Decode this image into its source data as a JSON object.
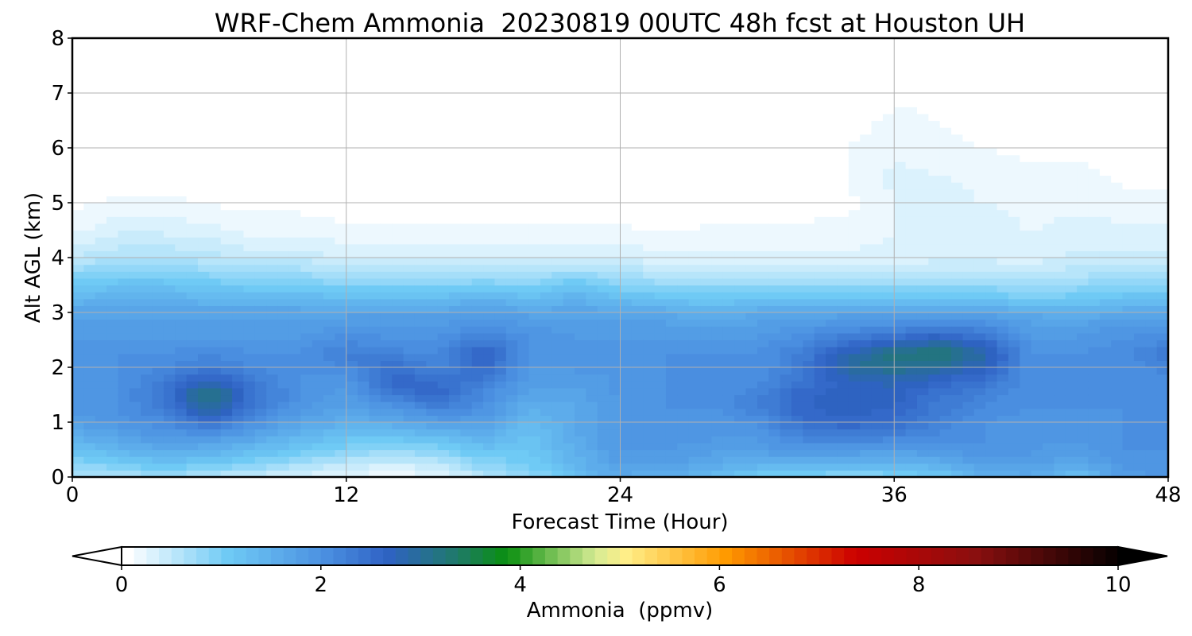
{
  "chart_data": {
    "type": "heatmap",
    "title": "WRF-Chem Ammonia  20230819 00UTC 48h fcst at Houston UH",
    "xlabel": "Forecast Time (Hour)",
    "ylabel": "Alt AGL (km)",
    "xlim": [
      0,
      48
    ],
    "ylim": [
      0,
      8
    ],
    "xticks": [
      0,
      12,
      24,
      36,
      48
    ],
    "yticks": [
      0,
      1,
      2,
      3,
      4,
      5,
      6,
      7,
      8
    ],
    "grid": true,
    "colorbar": {
      "label": "Ammonia  (ppmv)",
      "range": [
        0,
        10
      ],
      "ticks": [
        0,
        2,
        4,
        6,
        8,
        10
      ],
      "extend": "both",
      "stops": [
        {
          "value": 0.0,
          "color": "#ffffff"
        },
        {
          "value": 1.0,
          "color": "#6fcaf5"
        },
        {
          "value": 2.0,
          "color": "#4a8ee0"
        },
        {
          "value": 2.6,
          "color": "#2f62c4"
        },
        {
          "value": 3.3,
          "color": "#1f7a6a"
        },
        {
          "value": 3.8,
          "color": "#0a8f10"
        },
        {
          "value": 4.7,
          "color": "#d6ec94"
        },
        {
          "value": 5.0,
          "color": "#ffee88"
        },
        {
          "value": 6.0,
          "color": "#ff9a00"
        },
        {
          "value": 7.3,
          "color": "#cc0000"
        },
        {
          "value": 8.5,
          "color": "#8a0f0f"
        },
        {
          "value": 10.0,
          "color": "#000000"
        }
      ]
    },
    "times": [
      0,
      2,
      4,
      6,
      8,
      10,
      12,
      14,
      16,
      18,
      20,
      22,
      24,
      26,
      28,
      30,
      32,
      34,
      36,
      38,
      40,
      42,
      44,
      46,
      48
    ],
    "altitudes": [
      0,
      0.25,
      0.5,
      0.75,
      1.0,
      1.25,
      1.5,
      1.75,
      2.0,
      2.25,
      2.5,
      2.75,
      3.0,
      3.25,
      3.5,
      3.75,
      4.0,
      4.5,
      5.0,
      5.5,
      6.0,
      7.0,
      8.0
    ],
    "values": [
      [
        0.6,
        0.9,
        1.2,
        1.5,
        1.8,
        1.9,
        1.9,
        1.9,
        1.9,
        1.9,
        1.9,
        1.8,
        1.7,
        1.4,
        1.1,
        0.8,
        0.5,
        0.2,
        0.1,
        0.05,
        0.05,
        0.05,
        0.05
      ],
      [
        0.6,
        1.0,
        1.4,
        1.7,
        1.9,
        2.0,
        2.0,
        2.0,
        2.0,
        2.0,
        1.9,
        1.8,
        1.7,
        1.5,
        1.2,
        0.9,
        0.6,
        0.35,
        0.15,
        0.05,
        0.05,
        0.05,
        0.05
      ],
      [
        0.7,
        1.2,
        1.6,
        1.9,
        2.1,
        2.3,
        2.4,
        2.3,
        2.1,
        2.0,
        1.9,
        1.8,
        1.7,
        1.5,
        1.2,
        0.9,
        0.6,
        0.35,
        0.15,
        0.05,
        0.05,
        0.05,
        0.05
      ],
      [
        0.5,
        1.1,
        1.5,
        1.9,
        2.5,
        3.0,
        3.3,
        2.8,
        2.3,
        2.1,
        1.9,
        1.8,
        1.7,
        1.4,
        1.1,
        0.8,
        0.55,
        0.3,
        0.12,
        0.05,
        0.05,
        0.05,
        0.05
      ],
      [
        0.4,
        0.9,
        1.3,
        1.7,
        2.0,
        2.3,
        2.4,
        2.3,
        2.1,
        2.0,
        1.9,
        1.8,
        1.7,
        1.4,
        1.0,
        0.7,
        0.45,
        0.2,
        0.08,
        0.05,
        0.05,
        0.05,
        0.05
      ],
      [
        0.3,
        0.7,
        1.1,
        1.4,
        1.7,
        1.9,
        2.0,
        2.0,
        2.0,
        2.0,
        1.9,
        1.8,
        1.7,
        1.4,
        1.0,
        0.7,
        0.45,
        0.2,
        0.08,
        0.05,
        0.05,
        0.05,
        0.05
      ],
      [
        0.2,
        0.5,
        0.9,
        1.2,
        1.5,
        1.7,
        1.8,
        1.9,
        2.1,
        2.3,
        2.1,
        1.9,
        1.7,
        1.3,
        0.9,
        0.6,
        0.35,
        0.15,
        0.05,
        0.05,
        0.05,
        0.05,
        0.05
      ],
      [
        0.15,
        0.4,
        0.8,
        1.2,
        1.6,
        1.9,
        2.3,
        2.6,
        2.5,
        2.2,
        2.0,
        1.9,
        1.7,
        1.3,
        0.9,
        0.6,
        0.35,
        0.15,
        0.05,
        0.05,
        0.05,
        0.05,
        0.05
      ],
      [
        0.2,
        0.5,
        0.9,
        1.3,
        1.8,
        2.2,
        2.6,
        2.5,
        2.2,
        2.1,
        2.0,
        1.9,
        1.7,
        1.3,
        0.9,
        0.6,
        0.35,
        0.15,
        0.05,
        0.05,
        0.05,
        0.05,
        0.05
      ],
      [
        0.5,
        0.9,
        1.2,
        1.5,
        1.8,
        2.0,
        2.1,
        2.3,
        2.6,
        2.7,
        2.3,
        2.0,
        1.8,
        1.5,
        1.0,
        0.6,
        0.35,
        0.15,
        0.05,
        0.05,
        0.05,
        0.05,
        0.05
      ],
      [
        0.8,
        1.0,
        1.1,
        1.2,
        1.3,
        1.5,
        1.7,
        1.8,
        1.9,
        2.0,
        2.0,
        1.9,
        1.7,
        1.3,
        0.9,
        0.6,
        0.35,
        0.15,
        0.05,
        0.05,
        0.05,
        0.05,
        0.05
      ],
      [
        1.2,
        1.4,
        1.5,
        1.6,
        1.6,
        1.6,
        1.7,
        1.8,
        1.9,
        1.9,
        1.9,
        1.8,
        1.7,
        1.5,
        1.2,
        0.7,
        0.4,
        0.15,
        0.05,
        0.05,
        0.05,
        0.05,
        0.05
      ],
      [
        1.6,
        1.8,
        1.9,
        1.9,
        1.9,
        1.9,
        1.9,
        1.9,
        1.9,
        1.9,
        1.9,
        1.8,
        1.7,
        1.3,
        0.9,
        0.6,
        0.35,
        0.15,
        0.05,
        0.05,
        0.05,
        0.05,
        0.05
      ],
      [
        1.5,
        1.8,
        1.9,
        1.9,
        1.9,
        2.0,
        2.0,
        2.0,
        2.0,
        2.0,
        1.9,
        1.8,
        1.6,
        1.2,
        0.8,
        0.5,
        0.3,
        0.1,
        0.05,
        0.05,
        0.05,
        0.05,
        0.05
      ],
      [
        1.3,
        1.6,
        1.8,
        1.9,
        1.9,
        2.0,
        2.0,
        2.0,
        2.0,
        2.0,
        1.9,
        1.7,
        1.5,
        1.1,
        0.8,
        0.5,
        0.3,
        0.15,
        0.05,
        0.05,
        0.05,
        0.05,
        0.05
      ],
      [
        1.0,
        1.5,
        1.8,
        1.9,
        2.0,
        2.2,
        2.2,
        2.1,
        2.0,
        2.0,
        1.9,
        1.8,
        1.6,
        1.2,
        0.8,
        0.5,
        0.3,
        0.15,
        0.08,
        0.1,
        0.1,
        0.05,
        0.05
      ],
      [
        0.9,
        1.5,
        1.9,
        2.2,
        2.5,
        2.6,
        2.6,
        2.4,
        2.3,
        2.3,
        2.1,
        1.9,
        1.6,
        1.2,
        0.8,
        0.5,
        0.3,
        0.15,
        0.08,
        0.1,
        0.1,
        0.05,
        0.05
      ],
      [
        0.8,
        1.4,
        1.9,
        2.3,
        2.6,
        2.7,
        2.7,
        2.7,
        3.0,
        2.8,
        2.4,
        2.0,
        1.7,
        1.2,
        0.8,
        0.5,
        0.3,
        0.15,
        0.1,
        0.12,
        0.12,
        0.05,
        0.05
      ],
      [
        0.9,
        1.4,
        1.8,
        2.2,
        2.5,
        2.6,
        2.7,
        2.8,
        3.1,
        3.2,
        2.6,
        2.1,
        1.7,
        1.2,
        0.8,
        0.5,
        0.3,
        0.25,
        0.25,
        0.3,
        0.2,
        0.1,
        0.05
      ],
      [
        1.1,
        1.5,
        1.9,
        2.1,
        2.2,
        2.3,
        2.4,
        2.6,
        3.0,
        3.3,
        2.8,
        2.2,
        1.7,
        1.2,
        0.8,
        0.5,
        0.35,
        0.3,
        0.3,
        0.25,
        0.15,
        0.1,
        0.05
      ],
      [
        1.5,
        1.8,
        2.0,
        2.0,
        2.0,
        2.1,
        2.2,
        2.4,
        2.7,
        2.9,
        2.5,
        2.1,
        1.7,
        1.2,
        0.8,
        0.5,
        0.35,
        0.3,
        0.25,
        0.2,
        0.12,
        0.08,
        0.05
      ],
      [
        1.6,
        1.8,
        1.9,
        1.9,
        1.9,
        2.0,
        2.0,
        2.0,
        2.0,
        2.0,
        1.9,
        1.8,
        1.6,
        1.0,
        0.7,
        0.45,
        0.3,
        0.25,
        0.2,
        0.15,
        0.1,
        0.06,
        0.05
      ],
      [
        1.2,
        1.6,
        1.8,
        1.9,
        1.9,
        2.0,
        2.0,
        2.0,
        2.0,
        2.0,
        1.9,
        1.8,
        1.5,
        1.1,
        0.8,
        0.55,
        0.4,
        0.3,
        0.2,
        0.15,
        0.1,
        0.05,
        0.05
      ],
      [
        1.8,
        1.9,
        2.0,
        2.0,
        2.0,
        2.0,
        2.0,
        2.0,
        2.0,
        2.1,
        2.0,
        1.9,
        1.6,
        1.2,
        0.9,
        0.6,
        0.4,
        0.3,
        0.15,
        0.1,
        0.05,
        0.05,
        0.05
      ],
      [
        1.9,
        2.0,
        2.0,
        2.0,
        2.0,
        2.0,
        2.0,
        2.0,
        2.2,
        2.4,
        2.1,
        1.9,
        1.6,
        1.2,
        0.9,
        0.6,
        0.4,
        0.3,
        0.15,
        0.1,
        0.05,
        0.05,
        0.1
      ]
    ]
  }
}
